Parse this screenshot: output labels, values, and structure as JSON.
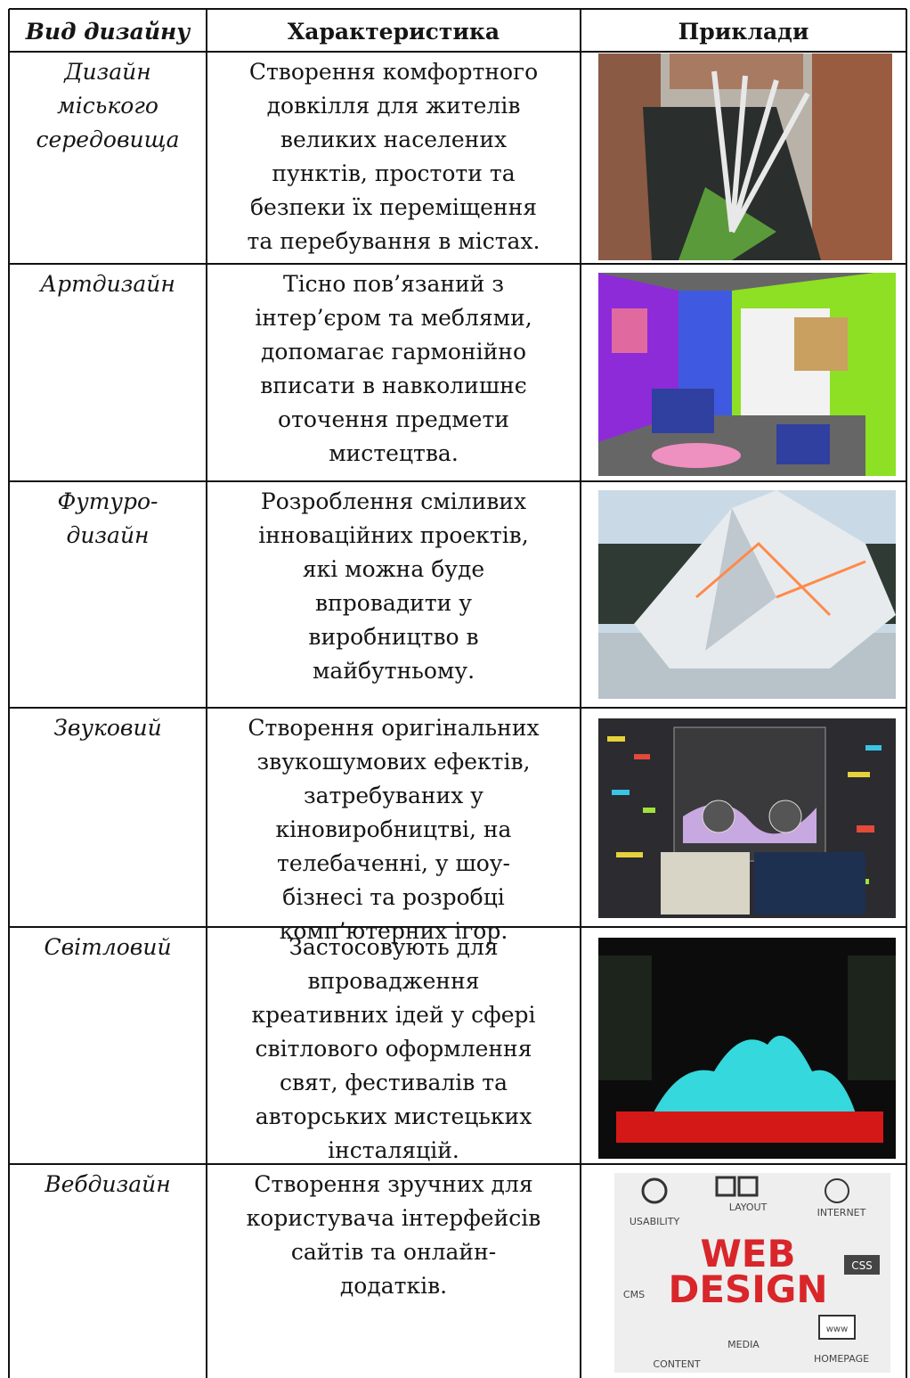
{
  "table": {
    "header": [
      "Вид дизайну",
      "Характеристика",
      "Приклади"
    ],
    "rows": [
      {
        "type": [
          "Дизайн",
          "міського",
          "середовища"
        ],
        "description": [
          "Створення комфортного",
          "довкілля для жителів",
          "великих населених",
          "пунктів, простоти та",
          "безпеки їх переміщення",
          "та перебування в містах."
        ]
      },
      {
        "type": [
          "Артдизайн"
        ],
        "description": [
          "Тісно пов’язаний з",
          "інтер’єром та меблями,",
          "допомагає гармонійно",
          "вписати в навколишнє",
          "оточення предмети",
          "мистецтва."
        ]
      },
      {
        "type": [
          "Футуро-",
          "дизайн"
        ],
        "description": [
          "Розроблення сміливих",
          "інноваційних проектів,",
          "які можна буде",
          "впровадити у",
          "виробництво в",
          "майбутньому."
        ]
      },
      {
        "type": [
          "Звуковий"
        ],
        "description": [
          "Створення оригінальних",
          "звукошумових ефектів,",
          "затребуваних у",
          "кіновиробництві, на",
          "телебаченні, у шоу-",
          "бізнесі та розробці",
          "комп’ютерних ігор."
        ]
      },
      {
        "type": [
          "Світловий"
        ],
        "description": [
          "Застосовують для",
          "впровадження",
          "креативних ідей у сфері",
          "світлового оформлення",
          "свят, фестивалів та",
          "авторських мистецьких",
          "інсталяцій."
        ]
      },
      {
        "type": [
          "Вебдизайн"
        ],
        "description": [
          "Створення зручних для",
          "користувача інтерфейсів",
          "сайтів та онлайн-",
          "додатків."
        ],
        "image_text": [
          "USABILITY",
          "LAYOUT",
          "INTERNET",
          "WEB",
          "DESIGN",
          "CSS",
          "CMS",
          "MEDIA",
          "www",
          "CONTENT",
          "HOMEPAGE"
        ]
      }
    ]
  }
}
